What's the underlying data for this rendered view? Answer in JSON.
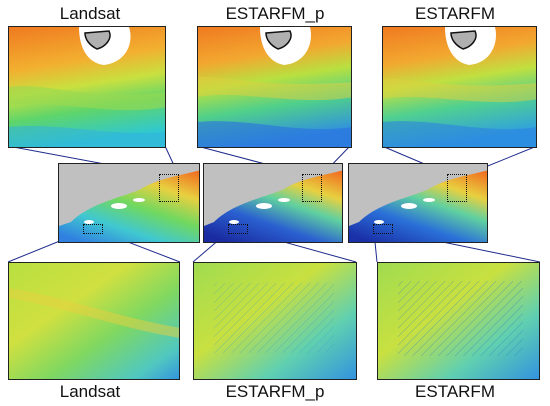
{
  "labels": {
    "top": [
      "Landsat",
      "ESTARFM_p",
      "ESTARFM"
    ],
    "bottom": [
      "Landsat",
      "ESTARFM_p",
      "ESTARFM"
    ]
  },
  "colors": {
    "land": "#c0c0c0",
    "orange": "#f08a2a",
    "yellow": "#e8d23a",
    "green": "#6ed56a",
    "cyan": "#40c9c8",
    "blue": "#2f7fe0",
    "darkblue": "#1a2aa0",
    "outline": "#1f2b8c"
  },
  "panels": [
    {
      "name": "Landsat"
    },
    {
      "name": "ESTARFM_p"
    },
    {
      "name": "ESTARFM"
    }
  ]
}
